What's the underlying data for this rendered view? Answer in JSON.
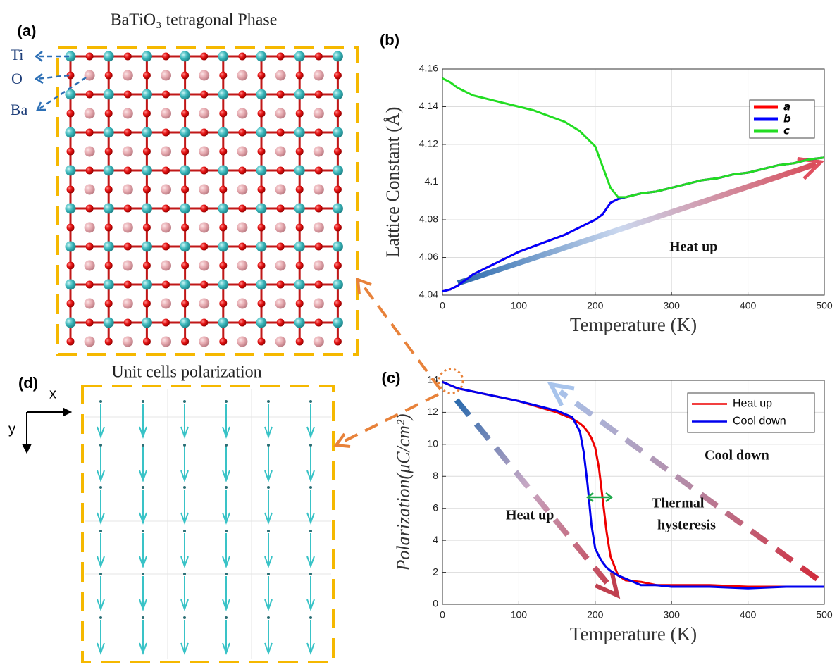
{
  "panel_labels": [
    "(a)",
    "(b)",
    "(c)",
    "(d)"
  ],
  "structure": {
    "title": "BaTiO₃ tetragonal Phase",
    "atoms": [
      "Ti",
      "O",
      "Ba"
    ]
  },
  "polarization_map": {
    "title": "Unit cells polarization",
    "axes": [
      "x",
      "y"
    ]
  },
  "chart_data": [
    {
      "type": "line",
      "xlabel": "Temperature (K)",
      "ylabel": "Lattice Constant (Å)",
      "x": [
        0,
        10,
        20,
        40,
        60,
        80,
        100,
        120,
        140,
        160,
        180,
        200,
        210,
        220,
        230,
        240,
        260,
        280,
        300,
        320,
        340,
        360,
        380,
        400,
        420,
        440,
        460,
        480,
        500
      ],
      "series": [
        {
          "name": "a",
          "color": "#ff0000",
          "values": [
            4.042,
            4.043,
            4.045,
            4.051,
            4.055,
            4.059,
            4.063,
            4.066,
            4.069,
            4.072,
            4.076,
            4.08,
            4.083,
            4.089,
            4.091,
            4.092,
            4.094,
            4.095,
            4.097,
            4.099,
            4.101,
            4.102,
            4.104,
            4.105,
            4.107,
            4.109,
            4.11,
            4.112,
            4.113
          ]
        },
        {
          "name": "b",
          "color": "#0000ff",
          "values": [
            4.042,
            4.043,
            4.045,
            4.051,
            4.055,
            4.059,
            4.063,
            4.066,
            4.069,
            4.072,
            4.076,
            4.08,
            4.083,
            4.089,
            4.091,
            4.092,
            4.094,
            4.095,
            4.097,
            4.099,
            4.101,
            4.102,
            4.104,
            4.105,
            4.107,
            4.109,
            4.11,
            4.112,
            4.113
          ]
        },
        {
          "name": "c",
          "color": "#22dd22",
          "values": [
            4.155,
            4.153,
            4.15,
            4.146,
            4.144,
            4.142,
            4.14,
            4.138,
            4.135,
            4.132,
            4.127,
            4.119,
            4.108,
            4.097,
            4.092,
            4.092,
            4.094,
            4.095,
            4.097,
            4.099,
            4.101,
            4.102,
            4.104,
            4.105,
            4.107,
            4.109,
            4.11,
            4.112,
            4.113
          ]
        }
      ],
      "xlim": [
        0,
        500
      ],
      "xticks": [
        0,
        100,
        200,
        300,
        400,
        500
      ],
      "ylim": [
        4.04,
        4.16
      ],
      "yticks": [
        4.04,
        4.06,
        4.08,
        4.1,
        4.12,
        4.14,
        4.16
      ],
      "grid": true,
      "legend": "upper right",
      "annotations": [
        "Heat up"
      ]
    },
    {
      "type": "line",
      "xlabel": "Temperature (K)",
      "ylabel": "Polarization(μC/cm²)",
      "x": [
        0,
        20,
        50,
        100,
        150,
        170,
        180,
        185,
        190,
        195,
        200,
        205,
        210,
        215,
        220,
        230,
        240,
        260,
        280,
        300,
        350,
        400,
        450,
        500
      ],
      "series": [
        {
          "name": "Heat up",
          "color": "#ee0000",
          "values": [
            13.9,
            13.5,
            13.2,
            12.7,
            12.0,
            11.6,
            11.3,
            11.1,
            10.8,
            10.4,
            9.8,
            8.5,
            6.5,
            4.5,
            3.0,
            1.8,
            1.5,
            1.4,
            1.2,
            1.2,
            1.2,
            1.1,
            1.1,
            1.1
          ]
        },
        {
          "name": "Cool down",
          "color": "#0000ee",
          "values": [
            13.9,
            13.5,
            13.2,
            12.7,
            12.1,
            11.7,
            10.8,
            9.5,
            7.5,
            5.0,
            3.5,
            3.0,
            2.6,
            2.3,
            2.1,
            1.8,
            1.6,
            1.2,
            1.2,
            1.1,
            1.1,
            1.0,
            1.1,
            1.1
          ]
        }
      ],
      "xlim": [
        0,
        500
      ],
      "xticks": [
        0,
        100,
        200,
        300,
        400,
        500
      ],
      "ylim": [
        0,
        14
      ],
      "yticks": [
        0,
        2,
        4,
        6,
        8,
        10,
        12,
        14
      ],
      "grid": true,
      "legend": "upper right",
      "annotations": [
        "Cool down",
        "Heat up",
        "Thermal",
        "hysteresis"
      ]
    }
  ]
}
